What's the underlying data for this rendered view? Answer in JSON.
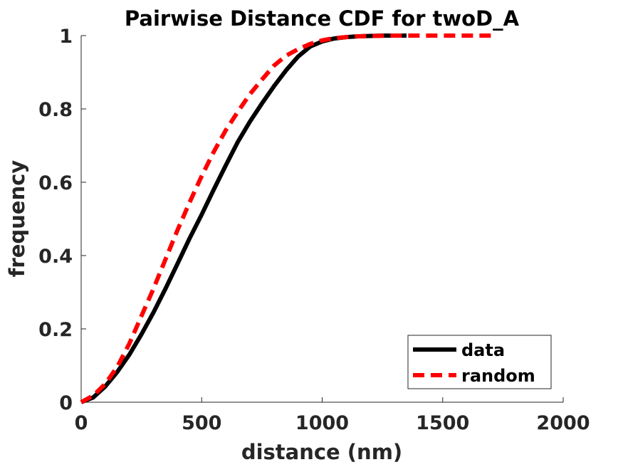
{
  "chart_data": {
    "type": "line",
    "title": "Pairwise Distance CDF for twoD_A",
    "xlabel": "distance (nm)",
    "ylabel": "frequency",
    "xlim": [
      0,
      2000
    ],
    "ylim": [
      0,
      1
    ],
    "xticks": [
      0,
      500,
      1000,
      1500,
      2000
    ],
    "xtick_labels": [
      "0",
      "500",
      "1000",
      "1500",
      "2000"
    ],
    "yticks": [
      0,
      0.2,
      0.4,
      0.6,
      0.8,
      1
    ],
    "ytick_labels": [
      "0",
      "0.2",
      "0.4",
      "0.6",
      "0.8",
      "1"
    ],
    "grid": false,
    "legend_position": "bottom-right",
    "series": [
      {
        "name": "data",
        "color": "#000000",
        "style": "solid",
        "x": [
          0,
          50,
          100,
          150,
          200,
          250,
          300,
          350,
          400,
          450,
          500,
          550,
          600,
          650,
          700,
          750,
          800,
          850,
          900,
          950,
          1000,
          1050,
          1100,
          1150,
          1200,
          1250,
          1300,
          1350
        ],
        "y": [
          0,
          0.013,
          0.043,
          0.083,
          0.13,
          0.185,
          0.245,
          0.31,
          0.378,
          0.447,
          0.512,
          0.58,
          0.646,
          0.71,
          0.765,
          0.815,
          0.862,
          0.905,
          0.943,
          0.97,
          0.984,
          0.992,
          0.996,
          0.998,
          0.999,
          1,
          1,
          1
        ]
      },
      {
        "name": "random",
        "color": "#ff0000",
        "style": "dashed",
        "x": [
          0,
          50,
          100,
          150,
          200,
          250,
          300,
          350,
          400,
          450,
          500,
          550,
          600,
          650,
          700,
          750,
          800,
          850,
          900,
          950,
          1000,
          1050,
          1100,
          1150,
          1200,
          1300,
          1400,
          1500,
          1600,
          1700
        ],
        "y": [
          0,
          0.018,
          0.05,
          0.097,
          0.16,
          0.235,
          0.31,
          0.39,
          0.47,
          0.545,
          0.617,
          0.683,
          0.742,
          0.792,
          0.84,
          0.88,
          0.918,
          0.945,
          0.963,
          0.977,
          0.987,
          0.993,
          0.996,
          0.998,
          0.999,
          1,
          1,
          1,
          1,
          1
        ]
      }
    ]
  }
}
